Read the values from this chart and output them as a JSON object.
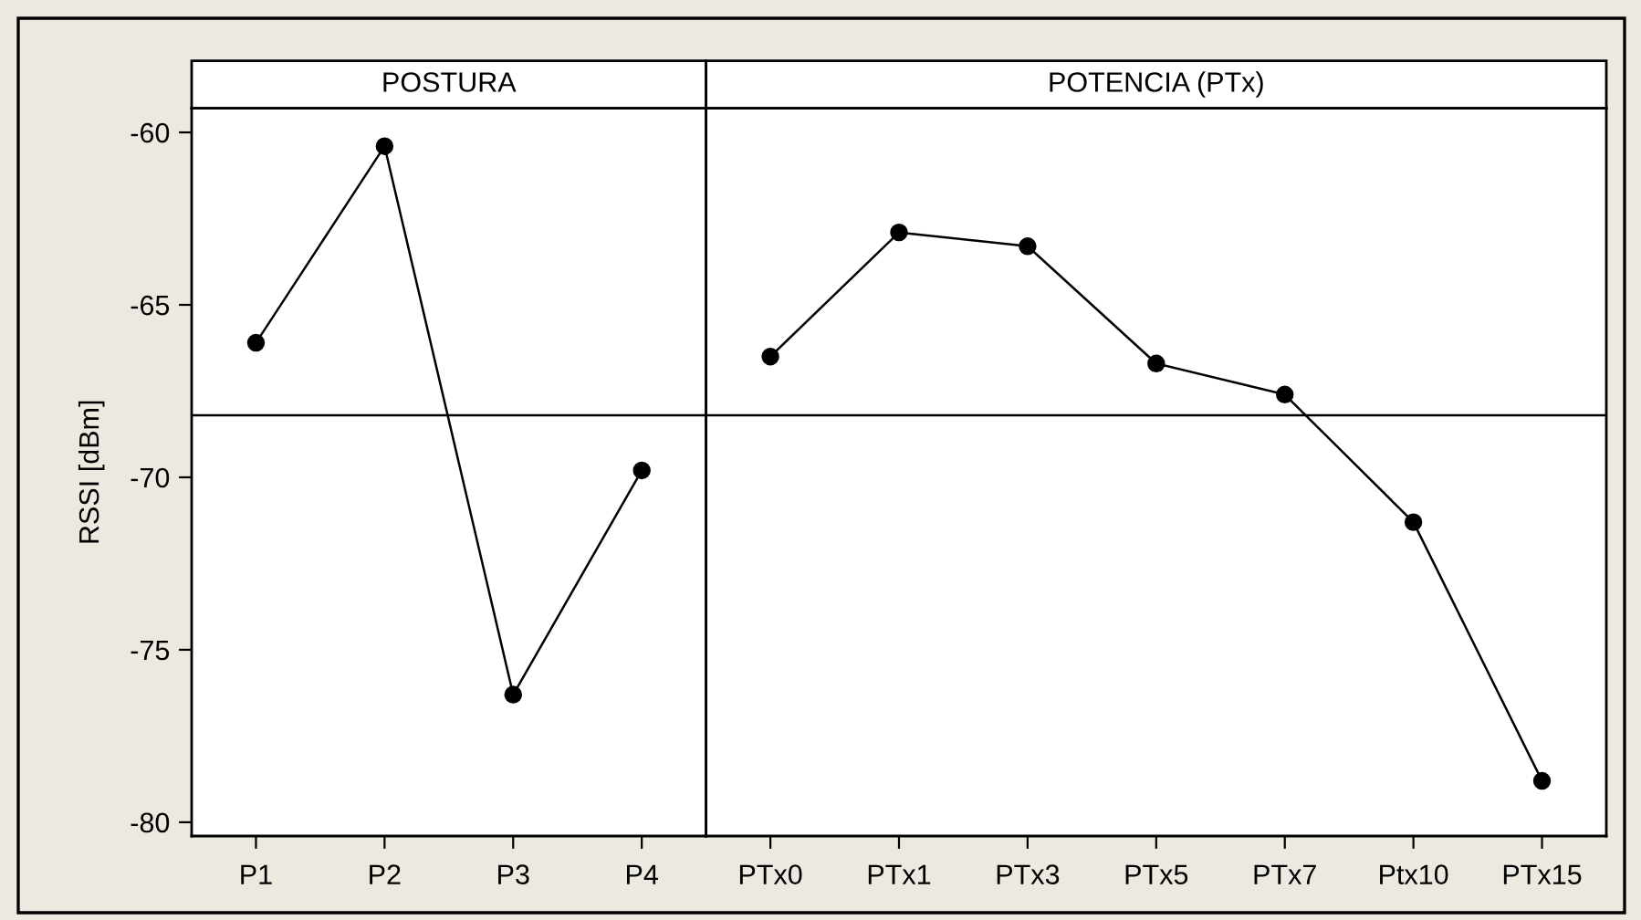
{
  "chart_data": [
    {
      "type": "line",
      "title": "POSTURA",
      "ylabel": "RSSI [dBm]",
      "categories": [
        "P1",
        "P2",
        "P3",
        "P4"
      ],
      "series": [
        {
          "color": "#000000",
          "values": [
            -66.1,
            -60.4,
            -76.3,
            -69.8
          ]
        }
      ],
      "ylim": [
        -80.4,
        -59.3
      ],
      "yticks": [
        -80,
        -75,
        -70,
        -65,
        -60
      ],
      "ref_lines": [
        {
          "axis": "y",
          "value": -68.2,
          "color": "#000000"
        }
      ],
      "marker": "circle",
      "line_style": "solid",
      "grid": false
    },
    {
      "type": "line",
      "title": "POTENCIA (PTx)",
      "categories": [
        "PTx0",
        "PTx1",
        "PTx3",
        "PTx5",
        "PTx7",
        "Ptx10",
        "PTx15"
      ],
      "series": [
        {
          "color": "#000000",
          "values": [
            -66.5,
            -62.9,
            -63.3,
            -66.7,
            -67.6,
            -71.3,
            -78.8
          ]
        }
      ],
      "ylim": [
        -80.4,
        -59.3
      ],
      "yticks": [
        -80,
        -75,
        -70,
        -65,
        -60
      ],
      "tick_labels": "x",
      "ref_lines": [
        {
          "axis": "y",
          "value": -68.2,
          "color": "#000000"
        }
      ],
      "marker": "circle",
      "line_style": "solid",
      "grid": false
    }
  ]
}
